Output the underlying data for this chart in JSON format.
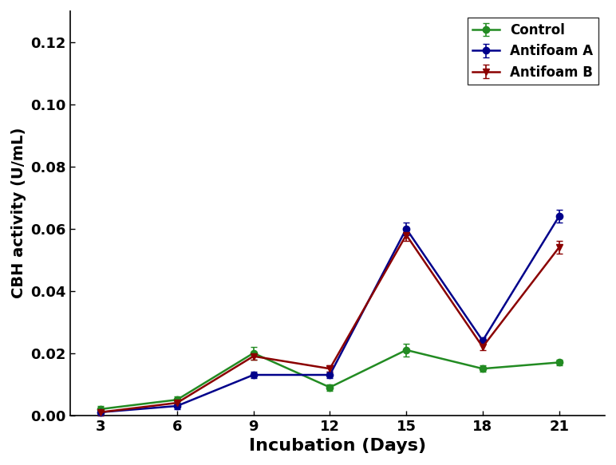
{
  "x": [
    3,
    6,
    9,
    12,
    15,
    18,
    21
  ],
  "control": {
    "y": [
      0.002,
      0.005,
      0.02,
      0.009,
      0.021,
      0.015,
      0.017
    ],
    "yerr": [
      0.001,
      0.001,
      0.002,
      0.001,
      0.002,
      0.001,
      0.001
    ],
    "color": "#228B22",
    "label": "Control",
    "marker": "o"
  },
  "antifoam_a": {
    "y": [
      0.001,
      0.003,
      0.013,
      0.013,
      0.06,
      0.024,
      0.064
    ],
    "yerr": [
      0.001,
      0.001,
      0.001,
      0.001,
      0.002,
      0.001,
      0.002
    ],
    "color": "#00008B",
    "label": "Antifoam A",
    "marker": "o"
  },
  "antifoam_b": {
    "y": [
      0.001,
      0.004,
      0.019,
      0.015,
      0.058,
      0.022,
      0.054
    ],
    "yerr": [
      0.001,
      0.001,
      0.001,
      0.001,
      0.002,
      0.001,
      0.002
    ],
    "color": "#8B0000",
    "label": "Antifoam B",
    "marker": "v"
  },
  "xlabel": "Incubation (Days)",
  "ylabel": "CBH activity (U/mL)",
  "ylim": [
    0.0,
    0.13
  ],
  "yticks": [
    0.0,
    0.02,
    0.04,
    0.06,
    0.08,
    0.1,
    0.12
  ],
  "xticks": [
    3,
    6,
    9,
    12,
    15,
    18,
    21
  ],
  "legend_loc": "upper right",
  "linewidth": 1.8,
  "markersize": 6,
  "capsize": 3,
  "xlabel_fontsize": 16,
  "ylabel_fontsize": 14,
  "tick_fontsize": 13,
  "legend_fontsize": 12
}
